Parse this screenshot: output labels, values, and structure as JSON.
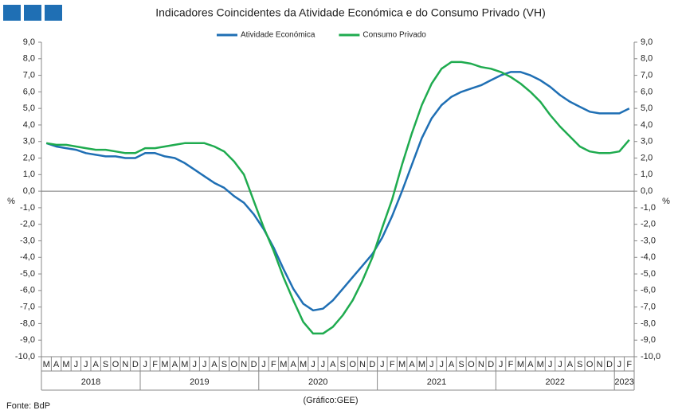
{
  "chart_data": {
    "type": "line",
    "title": "Indicadores Coincidentes da Atividade Económica e do Consumo Privado (VH)",
    "ylabel": "%",
    "categories": [
      "M",
      "A",
      "M",
      "J",
      "J",
      "A",
      "S",
      "O",
      "N",
      "D",
      "J",
      "F",
      "M",
      "A",
      "M",
      "J",
      "J",
      "A",
      "S",
      "O",
      "N",
      "D",
      "J",
      "F",
      "M",
      "A",
      "M",
      "J",
      "J",
      "A",
      "S",
      "O",
      "N",
      "D",
      "J",
      "F",
      "M",
      "A",
      "M",
      "J",
      "J",
      "A",
      "S",
      "O",
      "N",
      "D",
      "J",
      "F",
      "M",
      "A",
      "M",
      "J",
      "J",
      "A",
      "S",
      "O",
      "N",
      "D",
      "J",
      "F"
    ],
    "years": [
      "2018",
      "2019",
      "2020",
      "2021",
      "2022",
      "2023"
    ],
    "series": [
      {
        "name": "Atividade Económica",
        "color": "#1f6fb4",
        "values": [
          2.9,
          2.7,
          2.6,
          2.5,
          2.3,
          2.2,
          2.1,
          2.1,
          2.0,
          2.0,
          2.3,
          2.3,
          2.1,
          2.0,
          1.7,
          1.3,
          0.9,
          0.5,
          0.2,
          -0.3,
          -0.7,
          -1.4,
          -2.3,
          -3.4,
          -4.7,
          -5.9,
          -6.8,
          -7.2,
          -7.1,
          -6.6,
          -5.9,
          -5.2,
          -4.5,
          -3.8,
          -2.8,
          -1.5,
          0.0,
          1.6,
          3.2,
          4.4,
          5.2,
          5.7,
          6.0,
          6.2,
          6.4,
          6.7,
          7.0,
          7.2,
          7.2,
          7.0,
          6.7,
          6.3,
          5.8,
          5.4,
          5.1,
          4.8,
          4.7,
          4.7,
          4.7,
          5.0
        ]
      },
      {
        "name": "Consumo Privado",
        "color": "#1fab4f",
        "values": [
          2.9,
          2.8,
          2.8,
          2.7,
          2.6,
          2.5,
          2.5,
          2.4,
          2.3,
          2.3,
          2.6,
          2.6,
          2.7,
          2.8,
          2.9,
          2.9,
          2.9,
          2.7,
          2.4,
          1.8,
          1.0,
          -0.6,
          -2.2,
          -3.6,
          -5.2,
          -6.6,
          -7.9,
          -8.6,
          -8.6,
          -8.2,
          -7.5,
          -6.6,
          -5.4,
          -4.0,
          -2.2,
          -0.5,
          1.6,
          3.5,
          5.2,
          6.5,
          7.4,
          7.8,
          7.8,
          7.7,
          7.5,
          7.4,
          7.2,
          6.9,
          6.5,
          6.0,
          5.4,
          4.6,
          3.9,
          3.3,
          2.7,
          2.4,
          2.3,
          2.3,
          2.4,
          3.1
        ]
      }
    ],
    "ylim": [
      -10,
      9
    ],
    "yticks": [
      {
        "value": 9,
        "label": "9,0"
      },
      {
        "value": 8,
        "label": "8,0"
      },
      {
        "value": 7,
        "label": "7,0"
      },
      {
        "value": 6,
        "label": "6,0"
      },
      {
        "value": 5,
        "label": "5,0"
      },
      {
        "value": 4,
        "label": "4,0"
      },
      {
        "value": 3,
        "label": "3,0"
      },
      {
        "value": 2,
        "label": "2,0"
      },
      {
        "value": 1,
        "label": "1,0"
      },
      {
        "value": 0,
        "label": "0,0"
      },
      {
        "value": -1,
        "label": "-1,0"
      },
      {
        "value": -2,
        "label": "-2,0"
      },
      {
        "value": -3,
        "label": "-3,0"
      },
      {
        "value": -4,
        "label": "-4,0"
      },
      {
        "value": -5,
        "label": "-5,0"
      },
      {
        "value": -6,
        "label": "-6,0"
      },
      {
        "value": -7,
        "label": "-7,0"
      },
      {
        "value": -8,
        "label": "-8,0"
      },
      {
        "value": -9,
        "label": "-9,0"
      },
      {
        "value": -10,
        "label": "-10,0"
      }
    ],
    "source": "Fonte: BdP",
    "note": "(Gráfico:GEE)"
  }
}
